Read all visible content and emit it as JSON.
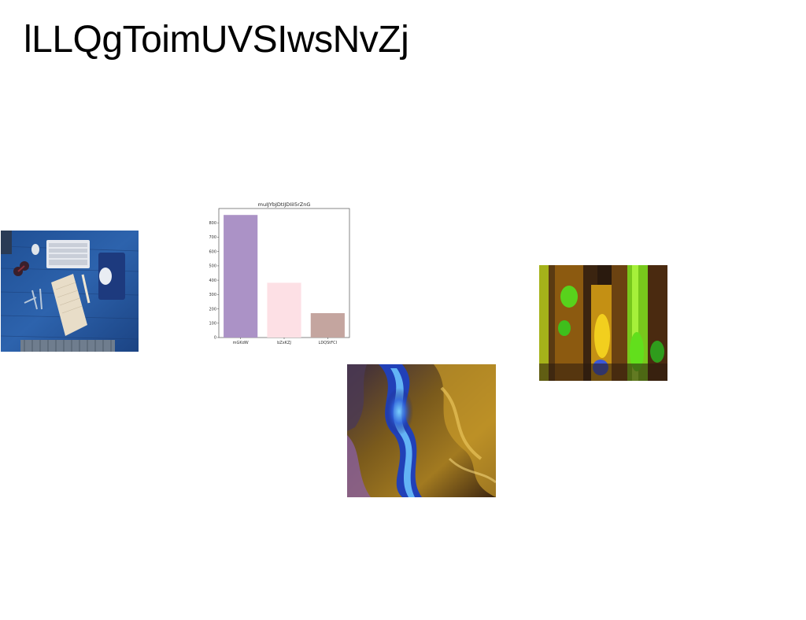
{
  "page": {
    "title": "lLLQgToimUVSIwsNvZj"
  },
  "images": [
    {
      "name": "desk-photo",
      "subject": "desk with keyboard notebook mouse"
    },
    {
      "name": "lava-lamps-photo",
      "subject": "lava lamps"
    },
    {
      "name": "fluid-art-photo",
      "subject": "abstract fluid paint"
    }
  ],
  "colors": {
    "bar1": "#ab92c6",
    "bar2": "#fde0e5",
    "bar3": "#c4a59f"
  },
  "chart_data": {
    "type": "bar",
    "title": "muIJYbJDtIJDIiI5rZnG",
    "categories": [
      "mGKdW",
      "bZxKZJ",
      "LDQStFCI"
    ],
    "values": [
      855,
      382,
      170
    ],
    "ylim": [
      0,
      900
    ],
    "yticks": [
      0,
      100,
      200,
      300,
      400,
      500,
      600,
      700,
      800
    ],
    "xlabel": "",
    "ylabel": "",
    "grid": false
  }
}
